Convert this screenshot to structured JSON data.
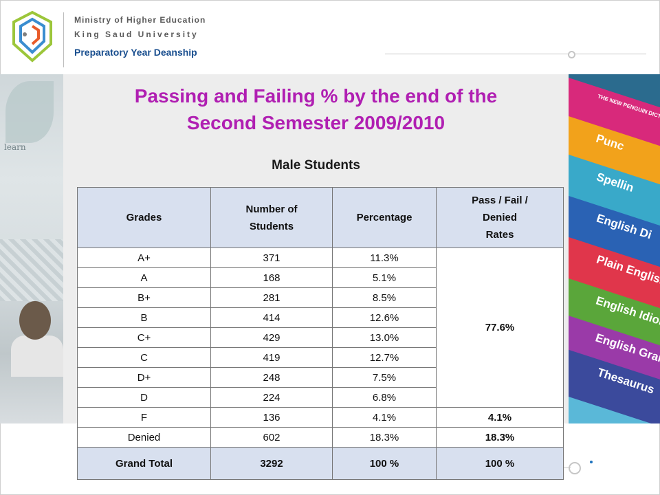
{
  "header": {
    "org_line1": "Ministry of Higher Education",
    "org_line2": "King Saud University",
    "org_line3": "Preparatory Year Deanship"
  },
  "slide": {
    "title_line1": "Passing and Failing % by the end of the",
    "title_line2": "Second Semester 2009/2010",
    "subtitle": "Male Students"
  },
  "table": {
    "headers": [
      "Grades",
      "Number of Students",
      "Percentage",
      "Pass / Fail / Denied Rates"
    ],
    "header_lines": {
      "number_of": "Number of",
      "students": "Students",
      "pass_fail": "Pass / Fail /",
      "denied": "Denied",
      "rates": "Rates"
    },
    "rows": [
      {
        "grade": "A+",
        "count": "371",
        "pct": "11.3%"
      },
      {
        "grade": "A",
        "count": "168",
        "pct": "5.1%"
      },
      {
        "grade": "B+",
        "count": "281",
        "pct": "8.5%"
      },
      {
        "grade": "B",
        "count": "414",
        "pct": "12.6%"
      },
      {
        "grade": "C+",
        "count": "429",
        "pct": "13.0%"
      },
      {
        "grade": "C",
        "count": "419",
        "pct": "12.7%"
      },
      {
        "grade": "D+",
        "count": "248",
        "pct": "7.5%"
      },
      {
        "grade": "D",
        "count": "224",
        "pct": "6.8%"
      },
      {
        "grade": "F",
        "count": "136",
        "pct": "4.1%"
      },
      {
        "grade": "Denied",
        "count": "602",
        "pct": "18.3%"
      }
    ],
    "pass_rate": "77.6%",
    "fail_rate": "4.1%",
    "denied_rate": "18.3%",
    "total": {
      "label": "Grand Total",
      "count": "3292",
      "pct": "100 %",
      "rate": "100 %"
    }
  },
  "decor": {
    "left_text": "learn",
    "book_labels": [
      "THE NEW PENGUIN DICTIONARY OF",
      "Punc",
      "Spellin",
      "English Di",
      "Plain English",
      "English Idioms",
      "English Grammar",
      "Thesaurus"
    ]
  },
  "colors": {
    "title": "#b01fb2",
    "header_fill": "#d8e0ef",
    "org_blue": "#1a4f8f"
  }
}
